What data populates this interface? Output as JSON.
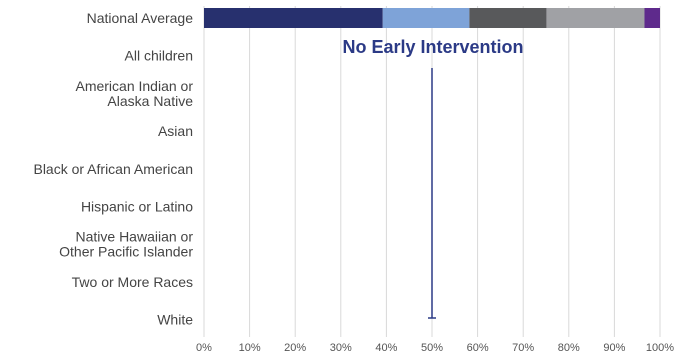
{
  "chart_data": {
    "type": "bar",
    "orientation": "horizontal",
    "stacked": true,
    "title": "",
    "xlabel": "",
    "ylabel": "",
    "xlim": [
      0,
      100
    ],
    "x_ticks": [
      "0%",
      "10%",
      "20%",
      "30%",
      "40%",
      "50%",
      "60%",
      "70%",
      "80%",
      "90%",
      "100%"
    ],
    "grid": "vertical",
    "legend": "none",
    "categories": [
      "National Average",
      "All children",
      "American Indian or\nAlaska Native",
      "Asian",
      "Black or African American",
      "Hispanic or Latino",
      "Native Hawaiian or\nOther Pacific Islander",
      "Two or More Races",
      "White"
    ],
    "series": [
      {
        "color": "#27306e",
        "values": [
          39.2,
          null,
          null,
          null,
          null,
          null,
          null,
          null,
          null
        ]
      },
      {
        "color": "#7ea3d8",
        "values": [
          19.0,
          null,
          null,
          null,
          null,
          null,
          null,
          null,
          null
        ]
      },
      {
        "color": "#58595b",
        "values": [
          16.9,
          null,
          null,
          null,
          null,
          null,
          null,
          null,
          null
        ]
      },
      {
        "color": "#a0a1a5",
        "values": [
          21.5,
          null,
          null,
          null,
          null,
          null,
          null,
          null,
          null
        ]
      },
      {
        "color": "#5e2a8c",
        "values": [
          3.4,
          null,
          null,
          null,
          null,
          null,
          null,
          null,
          null
        ]
      }
    ],
    "annotation": {
      "text": "No Early Intervention",
      "color": "#2b3a86"
    },
    "reference_line": {
      "x": 50,
      "color": "#2b3a86",
      "from_category": "All children",
      "to_category": "White"
    }
  }
}
